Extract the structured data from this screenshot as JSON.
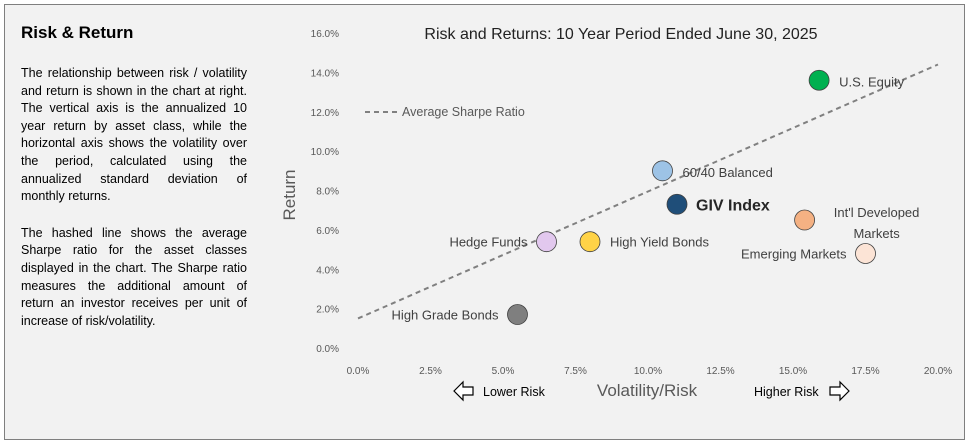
{
  "sidebar": {
    "title": "Risk & Return",
    "paragraph1": "The relationship between risk / volatility and return is shown in the chart at right.  The vertical axis is the annualized 10 year return by asset class, while the horizontal axis shows the volatility over the period, calculated using the annualized standard deviation of monthly returns.",
    "paragraph2": "The hashed line shows the average Sharpe ratio for the asset classes displayed in the chart. The Sharpe ratio measures the additional amount of return an investor receives per unit of increase of risk/volatility."
  },
  "chart_data": {
    "type": "scatter",
    "title": "Risk and Returns: 10 Year Period Ended June 30, 2025",
    "xlabel": "Volatility/Risk",
    "ylabel": "Return",
    "xlim": [
      0,
      20
    ],
    "ylim": [
      0,
      16
    ],
    "x_ticks": [
      "0.0%",
      "2.5%",
      "5.0%",
      "7.5%",
      "10.0%",
      "12.5%",
      "15.0%",
      "17.5%",
      "20.0%"
    ],
    "y_ticks": [
      "0.0%",
      "2.0%",
      "4.0%",
      "6.0%",
      "8.0%",
      "10.0%",
      "12.0%",
      "14.0%",
      "16.0%"
    ],
    "grid": false,
    "legend_label": "Average Sharpe Ratio",
    "lower_risk_label": "Lower Risk",
    "higher_risk_label": "Higher Risk",
    "sharpe_line": {
      "x": [
        0,
        20
      ],
      "y": [
        1.5,
        14.4
      ],
      "color": "#808080"
    },
    "points": [
      {
        "name": "U.S. Equity",
        "x": 15.9,
        "y": 13.6,
        "color": "#00b050"
      },
      {
        "name": "60/40 Balanced",
        "x": 10.5,
        "y": 9.0,
        "color": "#9dc3e6"
      },
      {
        "name": "GIV Index",
        "x": 11.0,
        "y": 7.3,
        "color": "#1f4e79"
      },
      {
        "name": "Int'l Developed Markets",
        "x": 15.4,
        "y": 6.5,
        "color": "#f4b183"
      },
      {
        "name": "Hedge Funds",
        "x": 6.5,
        "y": 5.4,
        "color": "#e2c8ee"
      },
      {
        "name": "High Yield Bonds",
        "x": 8.0,
        "y": 5.4,
        "color": "#ffd347"
      },
      {
        "name": "Emerging Markets",
        "x": 17.5,
        "y": 4.8,
        "color": "#fce4d6"
      },
      {
        "name": "High Grade Bonds",
        "x": 5.5,
        "y": 1.7,
        "color": "#7f7f7f"
      }
    ]
  }
}
